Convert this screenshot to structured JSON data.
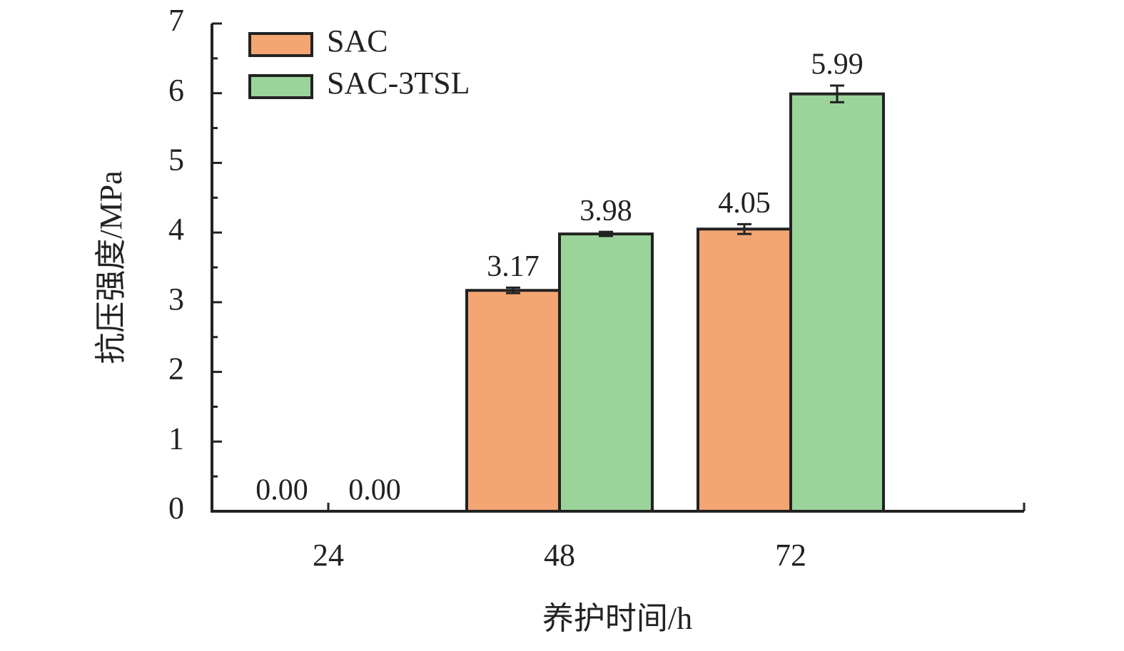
{
  "chart_data": {
    "type": "bar",
    "x_label": "养护时间/h",
    "y_label": "抗压强度/MPa",
    "categories": [
      "24",
      "48",
      "72"
    ],
    "series": [
      {
        "name": "SAC",
        "color": "#f4a672",
        "values": [
          0,
          3.17,
          4.05
        ],
        "value_labels": [
          "0.00",
          "3.17",
          "4.05"
        ],
        "errors": [
          0,
          0.04,
          0.07
        ]
      },
      {
        "name": "SAC-3TSL",
        "color": "#9bd49a",
        "values": [
          0,
          3.98,
          5.99
        ],
        "value_labels": [
          "0.00",
          "3.98",
          "5.99"
        ],
        "errors": [
          0,
          0.03,
          0.12
        ]
      }
    ],
    "ylim": [
      0,
      7
    ],
    "yticks": [
      0,
      1,
      2,
      3,
      4,
      5,
      6,
      7
    ],
    "legend": "upper left"
  }
}
